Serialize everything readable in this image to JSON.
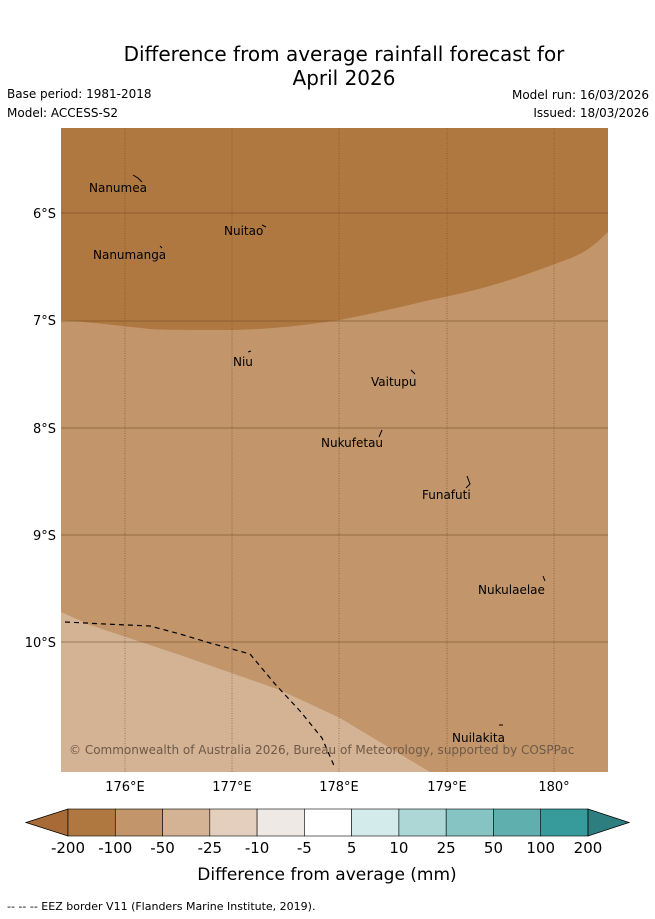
{
  "header": {
    "title_line1": "Difference from average rainfall forecast for",
    "title_line2": "April 2026",
    "base_period": "Base period: 1981-2018",
    "model": "Model: ACCESS-S2",
    "model_run": "Model run: 16/03/2026",
    "issued": "Issued: 18/03/2026"
  },
  "map": {
    "lat_labels": [
      "6°S",
      "7°S",
      "8°S",
      "9°S",
      "10°S"
    ],
    "lon_labels": [
      "176°E",
      "177°E",
      "178°E",
      "179°E",
      "180°"
    ],
    "places": [
      {
        "name": "Nanumea"
      },
      {
        "name": "Nuitao"
      },
      {
        "name": "Nanumanga"
      },
      {
        "name": "Niu"
      },
      {
        "name": "Vaitupu"
      },
      {
        "name": "Nukufetau"
      },
      {
        "name": "Funafuti"
      },
      {
        "name": "Nukulaelae"
      },
      {
        "name": "Nuilakita"
      }
    ],
    "attribution": "© Commonwealth of Australia 2026, Bureau of Meteorology, supported by COSPPac"
  },
  "colorbar": {
    "title": "Difference from average (mm)",
    "tick_labels": [
      "-200",
      "-100",
      "-50",
      "-25",
      "-10",
      "-5",
      "5",
      "10",
      "25",
      "50",
      "100",
      "200"
    ],
    "colors": [
      "#a86a36",
      "#b07841",
      "#c2956a",
      "#d4b294",
      "#e4cfbe",
      "#eee9e4",
      "#ffffff",
      "#d3ebea",
      "#acd7d6",
      "#86c3c3",
      "#5eafae",
      "#379b9b",
      "#2d7e7e"
    ]
  },
  "footer": {
    "eez_legend": "--  --  -- EEZ border V11 (Flanders Marine Institute, 2019)."
  }
}
